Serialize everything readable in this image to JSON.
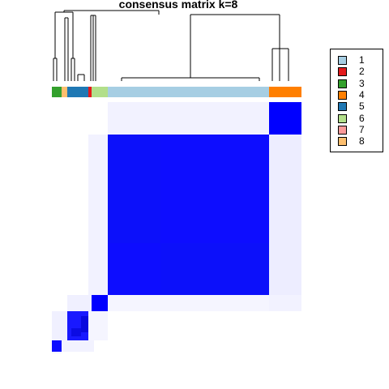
{
  "chart_data": {
    "type": "heatmap",
    "title": "consensus matrix k=8",
    "color_scale": {
      "low": "#ffffff",
      "high": "#0000ff"
    },
    "legend": {
      "placement": "right",
      "entries": [
        {
          "label": "1",
          "color": "#a6cee3"
        },
        {
          "label": "2",
          "color": "#e31a1c"
        },
        {
          "label": "3",
          "color": "#33a02c"
        },
        {
          "label": "4",
          "color": "#ff7f00"
        },
        {
          "label": "5",
          "color": "#1f78b4"
        },
        {
          "label": "6",
          "color": "#b2df8a"
        },
        {
          "label": "7",
          "color": "#fb9a99"
        },
        {
          "label": "8",
          "color": "#fdbf6f"
        }
      ]
    },
    "class_order": [
      "3",
      "8",
      "5",
      "2",
      "6",
      "1",
      "4"
    ],
    "class_counts": [
      2,
      1,
      3,
      1,
      3,
      30,
      6
    ],
    "blocks": [
      {
        "class": "4",
        "consensus": 1.0
      },
      {
        "class": "1",
        "consensus": 0.95
      },
      {
        "class": "6",
        "consensus": 1.0
      },
      {
        "class": "5",
        "consensus": 0.9
      },
      {
        "class": "3",
        "consensus": 0.95
      }
    ]
  }
}
